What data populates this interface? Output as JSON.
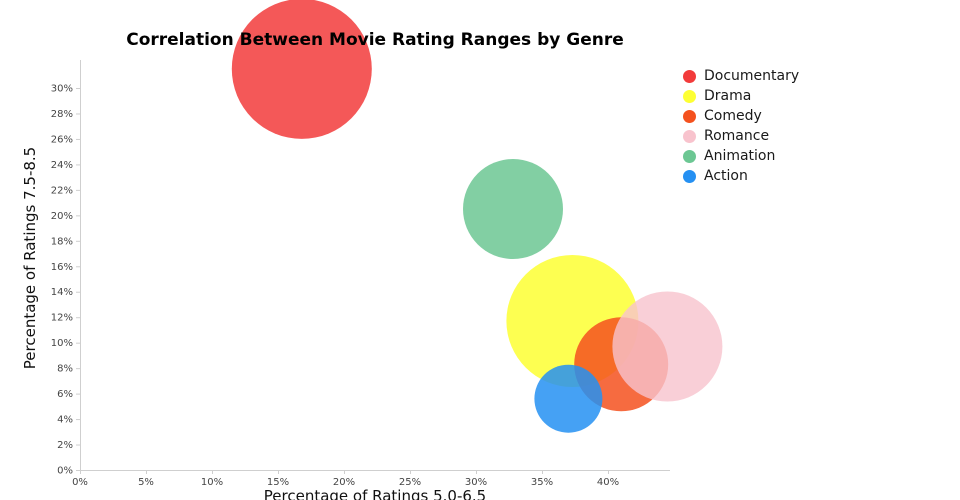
{
  "title": "Correlation Between Movie Rating Ranges by Genre",
  "axes": {
    "xlabel": "Percentage of Ratings 5.0-6.5",
    "ylabel": "Percentage of Ratings 7.5-8.5",
    "x_ticks": [
      "0%",
      "5%",
      "10%",
      "15%",
      "20%",
      "25%",
      "30%",
      "35%",
      "40%"
    ],
    "y_ticks": [
      "0%",
      "2%",
      "4%",
      "6%",
      "8%",
      "10%",
      "12%",
      "14%",
      "16%",
      "18%",
      "20%",
      "22%",
      "24%",
      "26%",
      "28%",
      "30%"
    ]
  },
  "legend": [
    {
      "label": "Documentary",
      "color": "#f23b3b"
    },
    {
      "label": "Drama",
      "color": "#fdff33"
    },
    {
      "label": "Comedy",
      "color": "#f4511e"
    },
    {
      "label": "Romance",
      "color": "#f8c3cd"
    },
    {
      "label": "Animation",
      "color": "#6cc793"
    },
    {
      "label": "Action",
      "color": "#2590f2"
    }
  ],
  "chart_data": {
    "type": "scatter",
    "subtype": "bubble",
    "xlim": [
      0,
      45
    ],
    "ylim": [
      0,
      32
    ],
    "x_tick_step_percent": 5,
    "y_tick_step_percent": 2,
    "bubbles": [
      {
        "genre": "Documentary",
        "x_percent": 16.8,
        "y_percent": 31.5,
        "radius_px": 70,
        "color": "#f23b3b",
        "opacity": 0.85
      },
      {
        "genre": "Drama",
        "x_percent": 37.3,
        "y_percent": 11.7,
        "radius_px": 66,
        "color": "#fdff33",
        "opacity": 0.85
      },
      {
        "genre": "Comedy",
        "x_percent": 41.0,
        "y_percent": 8.3,
        "radius_px": 47,
        "color": "#f4511e",
        "opacity": 0.85
      },
      {
        "genre": "Romance",
        "x_percent": 44.5,
        "y_percent": 9.7,
        "radius_px": 55,
        "color": "#f8c3cd",
        "opacity": 0.8
      },
      {
        "genre": "Animation",
        "x_percent": 32.8,
        "y_percent": 20.5,
        "radius_px": 50,
        "color": "#6cc793",
        "opacity": 0.85
      },
      {
        "genre": "Action",
        "x_percent": 37.0,
        "y_percent": 5.6,
        "radius_px": 34,
        "color": "#2590f2",
        "opacity": 0.85
      }
    ]
  }
}
